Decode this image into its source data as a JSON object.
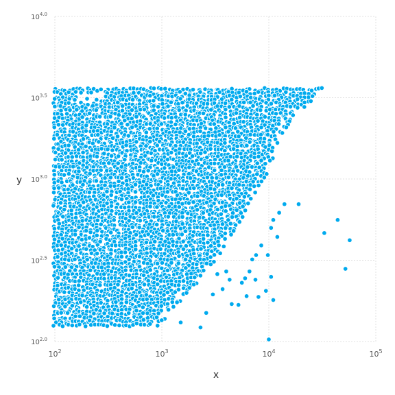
{
  "chart_data": {
    "type": "scatter",
    "xlabel": "x",
    "ylabel": "y",
    "x_scale": "log10",
    "y_scale": "log10",
    "xlim": [
      100,
      100000
    ],
    "ylim": [
      100,
      10000
    ],
    "x_ticks": [
      {
        "base": "10",
        "exp": "2"
      },
      {
        "base": "10",
        "exp": "3"
      },
      {
        "base": "10",
        "exp": "4"
      },
      {
        "base": "10",
        "exp": "5"
      }
    ],
    "y_ticks": [
      {
        "base": "10",
        "exp": "2.0"
      },
      {
        "base": "10",
        "exp": "2.5"
      },
      {
        "base": "10",
        "exp": "3.0"
      },
      {
        "base": "10",
        "exp": "3.5"
      },
      {
        "base": "10",
        "exp": "4.0"
      }
    ],
    "grid": true,
    "marker_color": "#00aaee",
    "marker_edge_color": "#ffffff",
    "dense_region": {
      "description": "densely filled band of points",
      "y_range": [
        123,
        3550
      ],
      "x_min": 100,
      "right_boundary": [
        {
          "y": 123,
          "x": 950
        },
        {
          "y": 150,
          "x": 1180
        },
        {
          "y": 200,
          "x": 1800
        },
        {
          "y": 316,
          "x": 3200
        },
        {
          "y": 500,
          "x": 5200
        },
        {
          "y": 700,
          "x": 7000
        },
        {
          "y": 1000,
          "x": 9300
        },
        {
          "y": 1500,
          "x": 11500
        },
        {
          "y": 2000,
          "x": 14500
        },
        {
          "y": 2500,
          "x": 19000
        },
        {
          "y": 3000,
          "x": 25000
        },
        {
          "y": 3550,
          "x": 33000
        }
      ],
      "top_left_gaps": [
        {
          "x": 220,
          "y": 3100
        },
        {
          "x": 180,
          "y": 3300
        },
        {
          "x": 260,
          "y": 3400
        }
      ]
    },
    "outliers": [
      {
        "x": 19000,
        "y": 700
      },
      {
        "x": 44000,
        "y": 560
      },
      {
        "x": 33000,
        "y": 465
      },
      {
        "x": 57000,
        "y": 420
      },
      {
        "x": 52000,
        "y": 280
      },
      {
        "x": 14000,
        "y": 700
      },
      {
        "x": 12500,
        "y": 620
      },
      {
        "x": 11000,
        "y": 560
      },
      {
        "x": 10500,
        "y": 500
      },
      {
        "x": 12000,
        "y": 440
      },
      {
        "x": 8500,
        "y": 390
      },
      {
        "x": 7600,
        "y": 340
      },
      {
        "x": 9800,
        "y": 340
      },
      {
        "x": 7000,
        "y": 320
      },
      {
        "x": 6600,
        "y": 270
      },
      {
        "x": 7500,
        "y": 240
      },
      {
        "x": 6000,
        "y": 245
      },
      {
        "x": 10500,
        "y": 250
      },
      {
        "x": 9400,
        "y": 205
      },
      {
        "x": 8000,
        "y": 188
      },
      {
        "x": 6200,
        "y": 190
      },
      {
        "x": 11000,
        "y": 180
      },
      {
        "x": 4500,
        "y": 170
      },
      {
        "x": 5200,
        "y": 168
      },
      {
        "x": 4000,
        "y": 270
      },
      {
        "x": 3300,
        "y": 260
      },
      {
        "x": 3700,
        "y": 210
      },
      {
        "x": 3000,
        "y": 195
      },
      {
        "x": 2600,
        "y": 150
      },
      {
        "x": 2300,
        "y": 122
      },
      {
        "x": 10000,
        "y": 103
      },
      {
        "x": 1500,
        "y": 131
      },
      {
        "x": 4300,
        "y": 240
      },
      {
        "x": 5600,
        "y": 230
      }
    ]
  }
}
